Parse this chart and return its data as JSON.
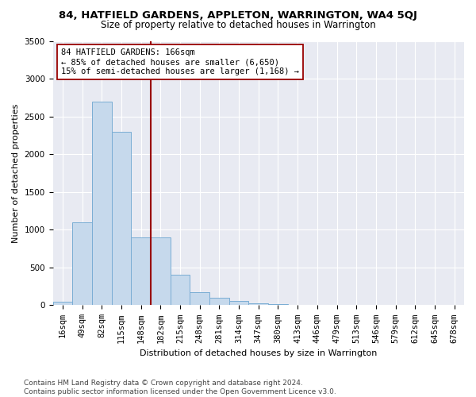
{
  "title1": "84, HATFIELD GARDENS, APPLETON, WARRINGTON, WA4 5QJ",
  "title2": "Size of property relative to detached houses in Warrington",
  "xlabel": "Distribution of detached houses by size in Warrington",
  "ylabel": "Number of detached properties",
  "categories": [
    "16sqm",
    "49sqm",
    "82sqm",
    "115sqm",
    "148sqm",
    "182sqm",
    "215sqm",
    "248sqm",
    "281sqm",
    "314sqm",
    "347sqm",
    "380sqm",
    "413sqm",
    "446sqm",
    "479sqm",
    "513sqm",
    "546sqm",
    "579sqm",
    "612sqm",
    "645sqm",
    "678sqm"
  ],
  "values": [
    50,
    1100,
    2700,
    2300,
    900,
    900,
    400,
    175,
    100,
    60,
    30,
    15,
    8,
    5,
    3,
    2,
    1,
    1,
    0,
    0,
    0
  ],
  "bar_color": "#c6d9ec",
  "bar_edge_color": "#7aadd4",
  "vline_color": "#990000",
  "annotation_line1": "84 HATFIELD GARDENS: 166sqm",
  "annotation_line2": "← 85% of detached houses are smaller (6,650)",
  "annotation_line3": "15% of semi-detached houses are larger (1,168) →",
  "annotation_box_color": "#ffffff",
  "annotation_box_edge": "#990000",
  "ylim": [
    0,
    3500
  ],
  "yticks": [
    0,
    500,
    1000,
    1500,
    2000,
    2500,
    3000,
    3500
  ],
  "bg_color": "#e8eaf2",
  "footer": "Contains HM Land Registry data © Crown copyright and database right 2024.\nContains public sector information licensed under the Open Government Licence v3.0.",
  "title1_fontsize": 9.5,
  "title2_fontsize": 8.5,
  "xlabel_fontsize": 8,
  "ylabel_fontsize": 8,
  "tick_fontsize": 7.5,
  "footer_fontsize": 6.5,
  "annot_fontsize": 7.5
}
